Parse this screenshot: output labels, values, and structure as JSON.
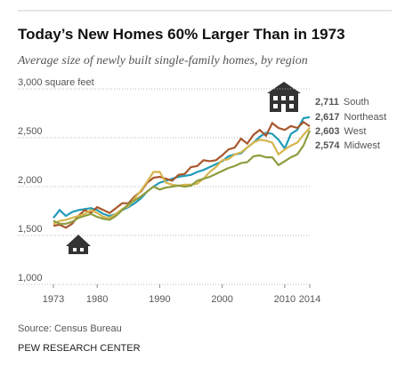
{
  "chart_data": {
    "type": "line",
    "title": "Today’s New Homes 60% Larger Than in 1973",
    "subtitle": "Average size of newly built single-family homes, by region",
    "source": "Source: Census Bureau",
    "footer": "PEW RESEARCH CENTER",
    "x": [
      1973,
      1974,
      1975,
      1976,
      1977,
      1978,
      1979,
      1980,
      1981,
      1982,
      1983,
      1984,
      1985,
      1986,
      1987,
      1988,
      1989,
      1990,
      1991,
      1992,
      1993,
      1994,
      1995,
      1996,
      1997,
      1998,
      1999,
      2000,
      2001,
      2002,
      2003,
      2004,
      2005,
      2006,
      2007,
      2008,
      2009,
      2010,
      2011,
      2012,
      2013,
      2014
    ],
    "xlim": [
      1973,
      2014
    ],
    "xticks": [
      1973,
      1980,
      1990,
      2000,
      2010,
      2014
    ],
    "ylim": [
      1000,
      3000
    ],
    "yticks": [
      {
        "value": 1000,
        "label": "1,000"
      },
      {
        "value": 1500,
        "label": "1,500"
      },
      {
        "value": 2000,
        "label": "2,000"
      },
      {
        "value": 2500,
        "label": "2,500"
      },
      {
        "value": 3000,
        "label": "3,000 square feet"
      }
    ],
    "grid": true,
    "series": [
      {
        "name": "South",
        "color": "#1f9bb8",
        "values": [
          1680,
          1760,
          1700,
          1740,
          1760,
          1770,
          1780,
          1760,
          1720,
          1700,
          1720,
          1760,
          1790,
          1830,
          1880,
          1950,
          2000,
          2040,
          2060,
          2080,
          2100,
          2110,
          2120,
          2150,
          2170,
          2200,
          2230,
          2260,
          2310,
          2330,
          2340,
          2400,
          2450,
          2510,
          2550,
          2540,
          2480,
          2390,
          2540,
          2580,
          2700,
          2711
        ],
        "value_labels": [
          null,
          null,
          null,
          null,
          null,
          null,
          null,
          null,
          null,
          null,
          null,
          null,
          null,
          null,
          null,
          null,
          null,
          null,
          null,
          null,
          null,
          null,
          null,
          null,
          null,
          null,
          null,
          null,
          null,
          null,
          null,
          null,
          null,
          null,
          null,
          null,
          null,
          null,
          null,
          null,
          null,
          "2,711"
        ]
      },
      {
        "name": "Northeast",
        "color": "#a8572c",
        "values": [
          1600,
          1610,
          1580,
          1620,
          1700,
          1760,
          1730,
          1790,
          1760,
          1730,
          1780,
          1830,
          1830,
          1900,
          1950,
          2040,
          2090,
          2100,
          2080,
          2060,
          2120,
          2130,
          2200,
          2210,
          2270,
          2260,
          2270,
          2320,
          2380,
          2400,
          2490,
          2440,
          2530,
          2580,
          2520,
          2650,
          2600,
          2580,
          2620,
          2600,
          2660,
          2617
        ],
        "value_labels": [
          null,
          null,
          null,
          null,
          null,
          null,
          null,
          null,
          null,
          null,
          null,
          null,
          null,
          null,
          null,
          null,
          null,
          null,
          null,
          null,
          null,
          null,
          null,
          null,
          null,
          null,
          null,
          null,
          null,
          null,
          null,
          null,
          null,
          null,
          null,
          null,
          null,
          null,
          null,
          null,
          null,
          "2,617"
        ]
      },
      {
        "name": "West",
        "color": "#d6b54c",
        "values": [
          1620,
          1650,
          1660,
          1680,
          1700,
          1720,
          1760,
          1730,
          1690,
          1680,
          1720,
          1770,
          1800,
          1880,
          1960,
          2050,
          2150,
          2150,
          2040,
          2020,
          2010,
          2020,
          2020,
          2030,
          2080,
          2150,
          2200,
          2270,
          2280,
          2330,
          2350,
          2400,
          2450,
          2480,
          2470,
          2450,
          2330,
          2380,
          2420,
          2450,
          2530,
          2603
        ],
        "value_labels": [
          null,
          null,
          null,
          null,
          null,
          null,
          null,
          null,
          null,
          null,
          null,
          null,
          null,
          null,
          null,
          null,
          null,
          null,
          null,
          null,
          null,
          null,
          null,
          null,
          null,
          null,
          null,
          null,
          null,
          null,
          null,
          null,
          null,
          null,
          null,
          null,
          null,
          null,
          null,
          null,
          null,
          "2,603"
        ]
      },
      {
        "name": "Midwest",
        "color": "#8f9c3e",
        "values": [
          1650,
          1620,
          1620,
          1640,
          1680,
          1700,
          1720,
          1690,
          1670,
          1660,
          1700,
          1760,
          1820,
          1860,
          1900,
          1950,
          2000,
          1970,
          1990,
          2000,
          2010,
          2000,
          2010,
          2060,
          2080,
          2100,
          2130,
          2160,
          2190,
          2210,
          2240,
          2250,
          2310,
          2320,
          2300,
          2300,
          2220,
          2260,
          2300,
          2330,
          2420,
          2574
        ],
        "value_labels": [
          null,
          null,
          null,
          null,
          null,
          null,
          null,
          null,
          null,
          null,
          null,
          null,
          null,
          null,
          null,
          null,
          null,
          null,
          null,
          null,
          null,
          null,
          null,
          null,
          null,
          null,
          null,
          null,
          null,
          null,
          null,
          null,
          null,
          null,
          null,
          null,
          null,
          null,
          null,
          null,
          null,
          "2,574"
        ]
      }
    ]
  }
}
